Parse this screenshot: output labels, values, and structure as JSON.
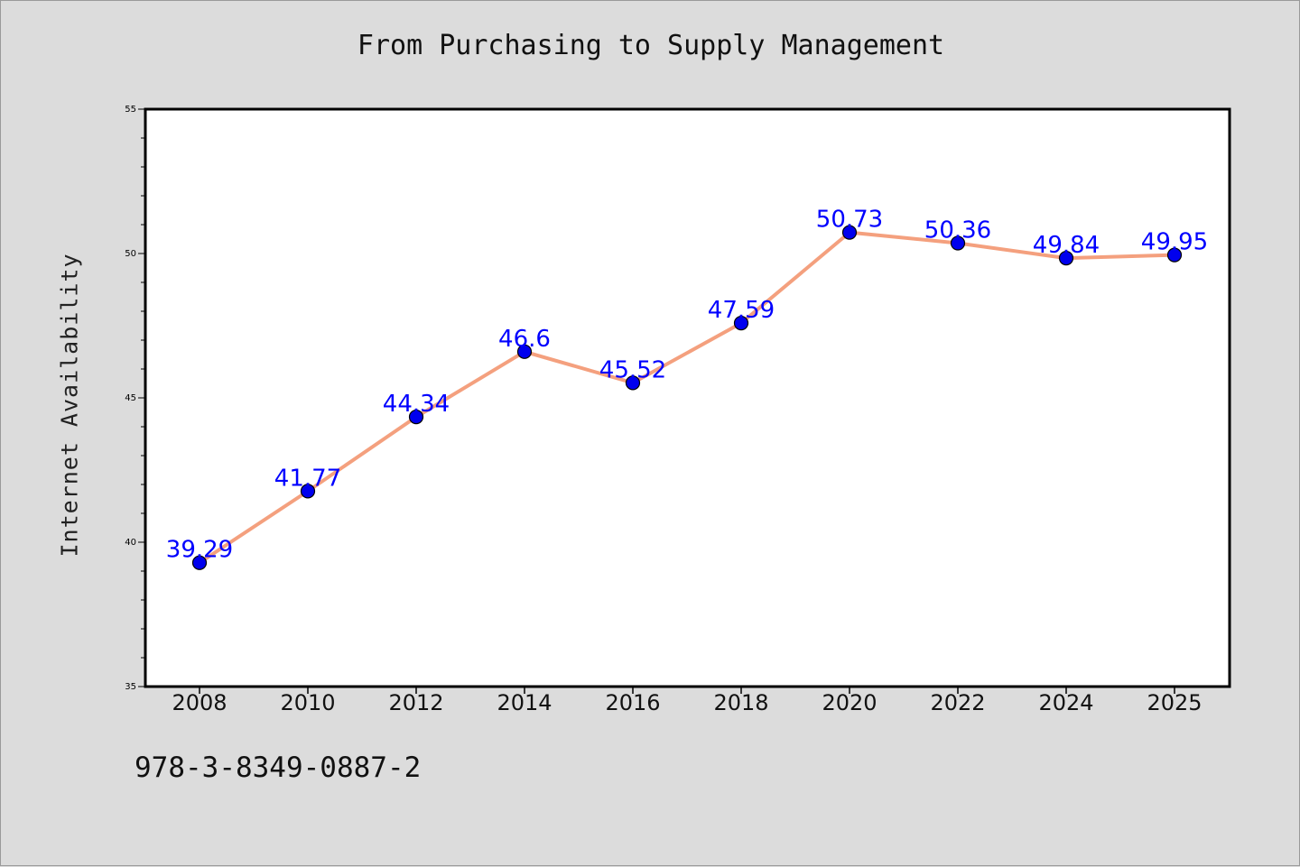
{
  "chart_data": {
    "type": "line",
    "title": "From Purchasing to Supply Management",
    "xlabel": "",
    "ylabel": "Internet Availability",
    "categories": [
      "2008",
      "2010",
      "2012",
      "2014",
      "2016",
      "2018",
      "2020",
      "2022",
      "2024",
      "2025"
    ],
    "series": [
      {
        "values": [
          39.29,
          41.77,
          44.34,
          46.6,
          45.52,
          47.59,
          50.73,
          50.36,
          49.84,
          49.95
        ],
        "data_labels": [
          "39.29",
          "41.77",
          "44.34",
          "46.6",
          "45.52",
          "47.59",
          "50.73",
          "50.36",
          "49.84",
          "49.95"
        ],
        "line_color": "#f4a07e",
        "marker_color": "#0000ee"
      }
    ],
    "ylim": [
      35,
      55
    ],
    "y_ticks": [
      "35",
      "40",
      "45",
      "50",
      "55"
    ],
    "grid": false,
    "legend": "none"
  },
  "footer": {
    "isbn": "978-3-8349-0887-2"
  },
  "colors": {
    "figure_background": "#dcdcdc",
    "plot_background": "#ffffff",
    "data_label": "#0000ff"
  }
}
